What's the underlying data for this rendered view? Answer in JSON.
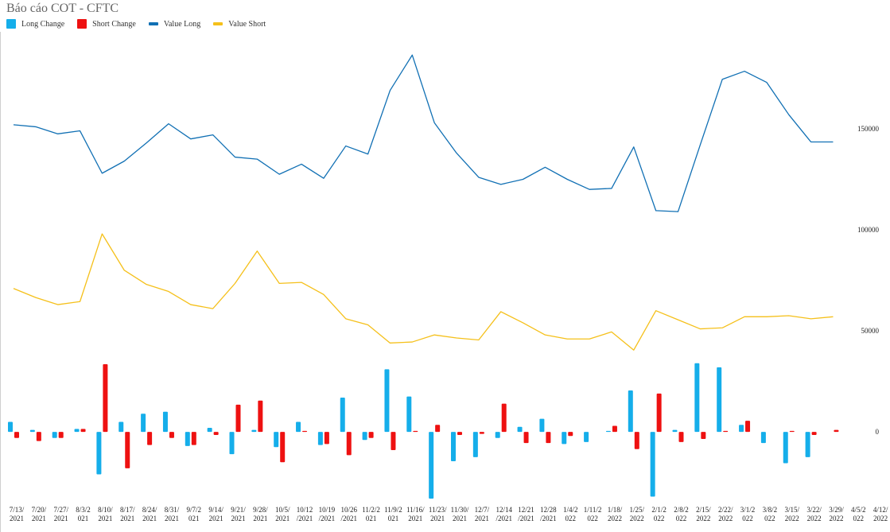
{
  "chart_data": {
    "type": "bar+line",
    "title": "Báo cáo COT - CFTC",
    "legend_position": "top-left",
    "grid": false,
    "categories": [
      [
        "7/13/",
        "2021"
      ],
      [
        "7/20/",
        "2021"
      ],
      [
        "7/27/",
        "2021"
      ],
      [
        "8/3/2",
        "021"
      ],
      [
        "8/10/",
        "2021"
      ],
      [
        "8/17/",
        "2021"
      ],
      [
        "8/24/",
        "2021"
      ],
      [
        "8/31/",
        "2021"
      ],
      [
        "9/7/2",
        "021"
      ],
      [
        "9/14/",
        "2021"
      ],
      [
        "9/21/",
        "2021"
      ],
      [
        "9/28/",
        "2021"
      ],
      [
        "10/5/",
        "2021"
      ],
      [
        "10/12",
        "/2021"
      ],
      [
        "10/19",
        "/2021"
      ],
      [
        "10/26",
        "/2021"
      ],
      [
        "11/2/2",
        "021"
      ],
      [
        "11/9/2",
        "021"
      ],
      [
        "11/16/",
        "2021"
      ],
      [
        "11/23/",
        "2021"
      ],
      [
        "11/30/",
        "2021"
      ],
      [
        "12/7/",
        "2021"
      ],
      [
        "12/14",
        "/2021"
      ],
      [
        "12/21",
        "/2021"
      ],
      [
        "12/28",
        "/2021"
      ],
      [
        "1/4/2",
        "022"
      ],
      [
        "1/11/2",
        "022"
      ],
      [
        "1/18/",
        "2022"
      ],
      [
        "1/25/",
        "2022"
      ],
      [
        "2/1/2",
        "022"
      ],
      [
        "2/8/2",
        "022"
      ],
      [
        "2/15/",
        "2022"
      ],
      [
        "2/22/",
        "2022"
      ],
      [
        "3/1/2",
        "022"
      ],
      [
        "3/8/2",
        "022"
      ],
      [
        "3/15/",
        "2022"
      ],
      [
        "3/22/",
        "2022"
      ],
      [
        "3/29/",
        "2022"
      ],
      [
        "4/5/2",
        "022"
      ],
      [
        "4/12/",
        "2022"
      ]
    ],
    "y_right_axis": {
      "ticks": [
        "0",
        "50000",
        "100000",
        "150000"
      ],
      "range": [
        -33000,
        198000
      ]
    },
    "series": [
      {
        "name": "Long Change",
        "kind": "bar",
        "color": "#15aeea",
        "values": [
          5000,
          1000,
          -3000,
          1500,
          -21000,
          5000,
          9000,
          10000,
          -7000,
          2000,
          -11000,
          1000,
          -7500,
          5000,
          -6500,
          17000,
          -4000,
          31000,
          17500,
          -33000,
          -14500,
          -12500,
          -3000,
          2500,
          6500,
          -6000,
          -5000,
          500,
          20500,
          -32000,
          1000,
          34000,
          32000,
          3500,
          -5500,
          -15500,
          -12500,
          0,
          0,
          0
        ]
      },
      {
        "name": "Short Change",
        "kind": "bar",
        "color": "#ee1111",
        "values": [
          -3000,
          -4500,
          -3000,
          1500,
          33500,
          -18000,
          -6500,
          -3000,
          -6500,
          -1500,
          13500,
          15500,
          -15000,
          500,
          -6000,
          -11500,
          -3000,
          -9000,
          500,
          3500,
          -1500,
          -1000,
          14000,
          -5500,
          -5500,
          -2000,
          0,
          3000,
          -8500,
          19000,
          -5000,
          -3500,
          500,
          5500,
          0,
          500,
          -1500,
          1000,
          0,
          0
        ]
      },
      {
        "name": "Value Long",
        "kind": "line",
        "color": "#1170b4",
        "values": [
          152000,
          151000,
          147500,
          149000,
          128000,
          134000,
          143000,
          152500,
          145000,
          147000,
          136000,
          135000,
          127500,
          132500,
          125500,
          141500,
          137500,
          169000,
          186500,
          153000,
          138000,
          126000,
          122500,
          125000,
          131000,
          125000,
          120000,
          120500,
          141000,
          109500,
          109000,
          142000,
          174500,
          178500,
          173000,
          157000,
          143500,
          143500,
          null,
          null
        ]
      },
      {
        "name": "Value Short",
        "kind": "line",
        "color": "#f5c01a",
        "values": [
          71000,
          66500,
          63000,
          64500,
          98000,
          80000,
          73000,
          69500,
          63000,
          61000,
          73500,
          89500,
          73500,
          74000,
          68000,
          56000,
          53000,
          44000,
          44500,
          48000,
          46500,
          45500,
          59500,
          54000,
          48000,
          46000,
          46000,
          49500,
          40500,
          60000,
          55500,
          51000,
          51500,
          57000,
          57000,
          57500,
          56000,
          57000,
          null,
          null
        ]
      }
    ]
  }
}
